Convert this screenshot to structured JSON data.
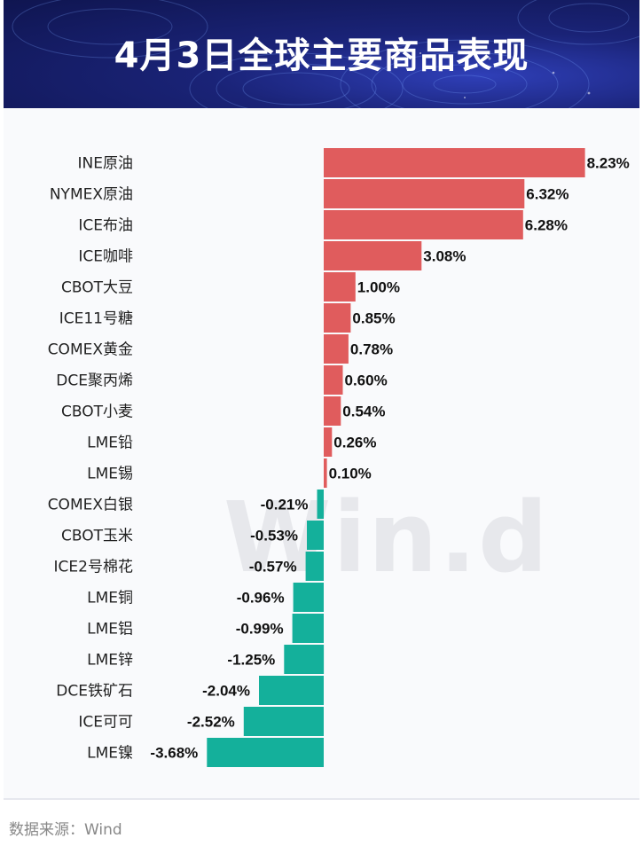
{
  "header": {
    "title": "4月3日全球主要商品表现"
  },
  "watermark": "Win.d",
  "footer": {
    "source": "数据来源：Wind"
  },
  "colors": {
    "positive": "#e05c5d",
    "negative": "#14b09b",
    "banner": "#1a2377"
  },
  "chart_data": {
    "type": "bar",
    "orientation": "horizontal",
    "categories": [
      "INE原油",
      "NYMEX原油",
      "ICE布油",
      "ICE咖啡",
      "CBOT大豆",
      "ICE11号糖",
      "COMEX黄金",
      "DCE聚丙烯",
      "CBOT小麦",
      "LME铅",
      "LME锡",
      "COMEX白银",
      "CBOT玉米",
      "ICE2号棉花",
      "LME铜",
      "LME铝",
      "LME锌",
      "DCE铁矿石",
      "ICE可可",
      "LME镍"
    ],
    "values": [
      8.23,
      6.32,
      6.28,
      3.08,
      1.0,
      0.85,
      0.78,
      0.6,
      0.54,
      0.26,
      0.1,
      -0.21,
      -0.53,
      -0.57,
      -0.96,
      -0.99,
      -1.25,
      -2.04,
      -2.52,
      -3.68
    ],
    "labels": [
      "8.23%",
      "6.32%",
      "6.28%",
      "3.08%",
      "1.00%",
      "0.85%",
      "0.78%",
      "0.60%",
      "0.54%",
      "0.26%",
      "0.10%",
      "-0.21%",
      "-0.53%",
      "-0.57%",
      "-0.96%",
      "-0.99%",
      "-1.25%",
      "-2.04%",
      "-2.52%",
      "-3.68%"
    ],
    "unit": "%",
    "grid": false,
    "legend": "none"
  }
}
